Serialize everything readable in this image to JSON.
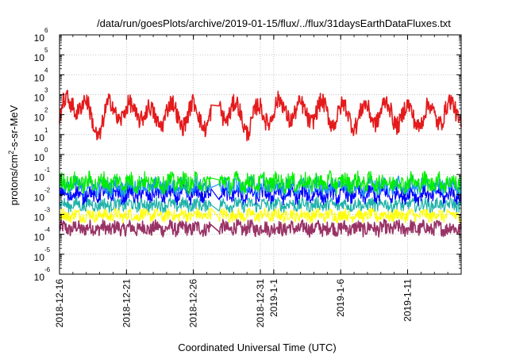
{
  "chart_data": {
    "type": "line",
    "title": "/data/run/goesPlots/archive/2019-01-15/flux/../flux/31daysEarthDataFluxes.txt",
    "xlabel": "Coordinated Universal Time (UTC)",
    "ylabel_base": "protons/cm",
    "ylabel_sup": "2",
    "ylabel_rest": "-s-sr-MeV",
    "yscale": "log",
    "ylim": [
      1e-06,
      1000000.0
    ],
    "xlim": [
      "2018-12-16",
      "2019-01-15"
    ],
    "grid": true,
    "legend": "none",
    "x_ticks": [
      {
        "date": "2018-12-16",
        "label": "2018-12-16"
      },
      {
        "date": "2018-12-21",
        "label": "2018-12-21"
      },
      {
        "date": "2018-12-26",
        "label": "2018-12-26"
      },
      {
        "date": "2018-12-31",
        "label": "2018-12-31"
      },
      {
        "date": "2019-01-01",
        "label": "2019-1-1"
      },
      {
        "date": "2019-01-06",
        "label": "2019-1-6"
      },
      {
        "date": "2019-01-11",
        "label": "2019-1-11"
      }
    ],
    "y_ticks": [
      {
        "value": 1e-06,
        "base": "10",
        "exp": "-6"
      },
      {
        "value": 1e-05,
        "base": "10",
        "exp": "-5"
      },
      {
        "value": 0.0001,
        "base": "10",
        "exp": "-4"
      },
      {
        "value": 0.001,
        "base": "10",
        "exp": "-3"
      },
      {
        "value": 0.01,
        "base": "10",
        "exp": "-2"
      },
      {
        "value": 0.1,
        "base": "10",
        "exp": "-1"
      },
      {
        "value": 1,
        "base": "10",
        "exp": "0"
      },
      {
        "value": 10,
        "base": "10",
        "exp": "1"
      },
      {
        "value": 100,
        "base": "10",
        "exp": "2"
      },
      {
        "value": 1000,
        "base": "10",
        "exp": "3"
      },
      {
        "value": 10000,
        "base": "10",
        "exp": "4"
      },
      {
        "value": 100000,
        "base": "10",
        "exp": "5"
      },
      {
        "value": 1000000,
        "base": "10",
        "exp": "6"
      }
    ],
    "data_gap": [
      "2018-12-27",
      "2018-12-28"
    ],
    "series": [
      {
        "color": "#e41a1c",
        "width": 1.6,
        "base": 120,
        "spread": 0.9,
        "osc_amp": 0.55,
        "osc_period_days": 1.6,
        "points": [
          [
            "2018-12-16",
            80
          ],
          [
            "2018-12-17",
            600
          ],
          [
            "2018-12-18",
            150
          ],
          [
            "2018-12-19",
            20
          ],
          [
            "2018-12-20",
            300
          ],
          [
            "2018-12-21",
            90
          ],
          [
            "2018-12-22",
            200
          ],
          [
            "2018-12-23",
            50
          ],
          [
            "2018-12-24",
            150
          ],
          [
            "2018-12-25",
            80
          ],
          [
            "2018-12-26",
            120
          ],
          [
            "2018-12-27",
            60
          ],
          [
            "2018-12-28",
            200
          ],
          [
            "2018-12-29",
            150
          ],
          [
            "2018-12-30",
            40
          ],
          [
            "2018-12-31",
            100
          ],
          [
            "2019-01-01",
            150
          ],
          [
            "2019-01-02",
            200
          ],
          [
            "2019-01-03",
            100
          ],
          [
            "2019-01-04",
            150
          ],
          [
            "2019-01-05",
            120
          ],
          [
            "2019-01-06",
            100
          ],
          [
            "2019-01-07",
            80
          ],
          [
            "2019-01-08",
            100
          ],
          [
            "2019-01-09",
            150
          ],
          [
            "2019-01-10",
            100
          ],
          [
            "2019-01-11",
            90
          ],
          [
            "2019-01-12",
            80
          ],
          [
            "2019-01-13",
            100
          ],
          [
            "2019-01-14",
            150
          ],
          [
            "2019-01-15",
            120
          ]
        ]
      },
      {
        "color": "#00ee00",
        "width": 1.2,
        "base": 0.04,
        "spread": 0.45,
        "osc_amp": 0.15,
        "osc_period_days": 1.0
      },
      {
        "color": "#1e90ff",
        "width": 1.2,
        "base": 0.025,
        "spread": 0.4,
        "osc_amp": 0.15,
        "osc_period_days": 1.0
      },
      {
        "color": "#0000ff",
        "width": 1.2,
        "base": 0.01,
        "spread": 0.35,
        "osc_amp": 0.2,
        "osc_period_days": 1.0
      },
      {
        "color": "#20b2aa",
        "width": 1.2,
        "base": 0.003,
        "spread": 0.3,
        "osc_amp": 0.1,
        "osc_period_days": 1.0
      },
      {
        "color": "#ffff00",
        "width": 1.2,
        "base": 0.0009,
        "spread": 0.3,
        "osc_amp": 0.1,
        "osc_period_days": 1.0
      },
      {
        "color": "#993366",
        "width": 1.6,
        "base": 0.0002,
        "spread": 0.35,
        "osc_amp": 0.1,
        "osc_period_days": 1.0
      }
    ]
  }
}
